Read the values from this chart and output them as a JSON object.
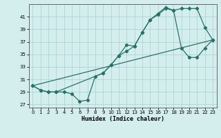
{
  "xlabel": "Humidex (Indice chaleur)",
  "background_color": "#d4eeee",
  "grid_color": "#aed4d4",
  "line_color": "#2a7068",
  "xlim": [
    -0.5,
    23.5
  ],
  "ylim": [
    26.5,
    43.0
  ],
  "xticks": [
    0,
    1,
    2,
    3,
    4,
    5,
    6,
    7,
    8,
    9,
    10,
    11,
    12,
    13,
    14,
    15,
    16,
    17,
    18,
    19,
    20,
    21,
    22,
    23
  ],
  "yticks": [
    27,
    29,
    31,
    33,
    35,
    37,
    39,
    41
  ],
  "line1_x": [
    0,
    1,
    2,
    3,
    4,
    5,
    6,
    7,
    8,
    9,
    10,
    11,
    12,
    13,
    14,
    15,
    16,
    17,
    18,
    19,
    20,
    21,
    22,
    23
  ],
  "line1_y": [
    30.0,
    29.3,
    29.0,
    29.0,
    29.0,
    28.7,
    27.5,
    27.7,
    31.5,
    32.0,
    33.3,
    34.8,
    36.5,
    36.3,
    38.5,
    40.5,
    41.3,
    42.3,
    42.0,
    36.0,
    34.5,
    34.5,
    36.0,
    37.3
  ],
  "line2_x": [
    0,
    1,
    2,
    3,
    9,
    10,
    11,
    12,
    13,
    14,
    15,
    16,
    17,
    18,
    19,
    20,
    21,
    22,
    23
  ],
  "line2_y": [
    30.0,
    29.3,
    29.0,
    29.0,
    32.0,
    33.3,
    34.8,
    35.5,
    36.3,
    38.5,
    40.5,
    41.5,
    42.5,
    42.0,
    42.3,
    42.3,
    42.3,
    39.3,
    37.3
  ],
  "line3_x": [
    0,
    23
  ],
  "line3_y": [
    30.0,
    37.3
  ]
}
